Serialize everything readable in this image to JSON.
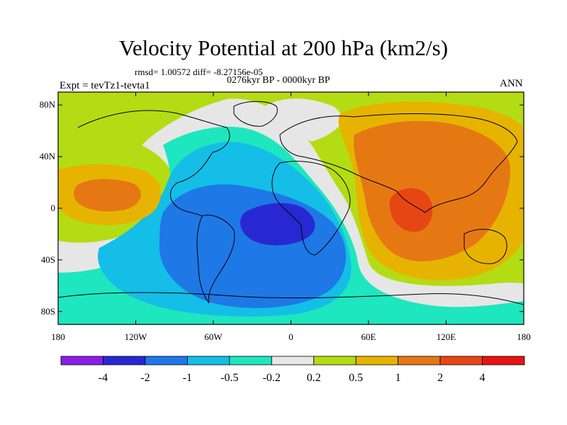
{
  "title": "Velocity Potential at 200 hPa (km2/s)",
  "stats": "rmsd= 1.00572 diff= -8.27156e-05",
  "period": "0276kyr BP - 0000kyr BP",
  "expt": "Expt = tevTz1-tevta1",
  "season": "ANN",
  "map": {
    "lat_ticks": [
      "80N",
      "40N",
      "0",
      "40S",
      "80S"
    ],
    "lat_values": [
      80,
      40,
      0,
      -40,
      -80
    ],
    "lon_ticks": [
      "180",
      "120W",
      "60W",
      "0",
      "60E",
      "120E",
      "180"
    ],
    "lon_values": [
      -180,
      -120,
      -60,
      0,
      60,
      120,
      180
    ],
    "lat_range": [
      -90,
      90
    ],
    "lon_range": [
      -180,
      180
    ]
  },
  "colorbar": {
    "labels": [
      "-4",
      "-2",
      "-1",
      "-0.5",
      "-0.2",
      "0.2",
      "0.5",
      "1",
      "2",
      "4"
    ],
    "colors": [
      "#8a1ee6",
      "#2828d2",
      "#1e78e6",
      "#14bee6",
      "#1ee6be",
      "#e6e6e6",
      "#b4dc14",
      "#e6b400",
      "#e67814",
      "#e64614",
      "#e61414"
    ]
  },
  "palette": {
    "very_low": "#8a1ee6",
    "low2": "#2828d2",
    "low1": "#1e78e6",
    "low05": "#14bee6",
    "low02": "#1ee6be",
    "neutral": "#e6e6e6",
    "high02": "#b4dc14",
    "high05": "#e6b400",
    "high1": "#e67814",
    "high2": "#e64614"
  }
}
